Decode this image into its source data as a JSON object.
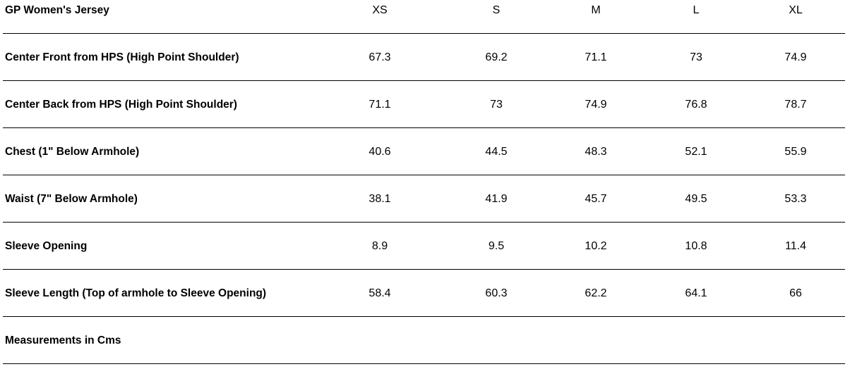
{
  "table": {
    "header": [
      "GP Women's Jersey",
      "XS",
      "S",
      "M",
      "L",
      "XL"
    ],
    "rows": [
      [
        "Center Front from HPS (High Point Shoulder)",
        "67.3",
        "69.2",
        "71.1",
        "73",
        "74.9"
      ],
      [
        "Center Back from HPS (High Point Shoulder)",
        "71.1",
        "73",
        "74.9",
        "76.8",
        "78.7"
      ],
      [
        "Chest (1\" Below Armhole)",
        "40.6",
        "44.5",
        "48.3",
        "52.1",
        "55.9"
      ],
      [
        "Waist (7\" Below Armhole)",
        "38.1",
        "41.9",
        "45.7",
        "49.5",
        "53.3"
      ],
      [
        "Sleeve Opening",
        "8.9",
        "9.5",
        "10.2",
        "10.8",
        "11.4"
      ],
      [
        "Sleeve Length (Top of armhole to Sleeve Opening)",
        "58.4",
        "60.3",
        "62.2",
        "64.1",
        "66"
      ]
    ],
    "footer": "Measurements in Cms"
  }
}
